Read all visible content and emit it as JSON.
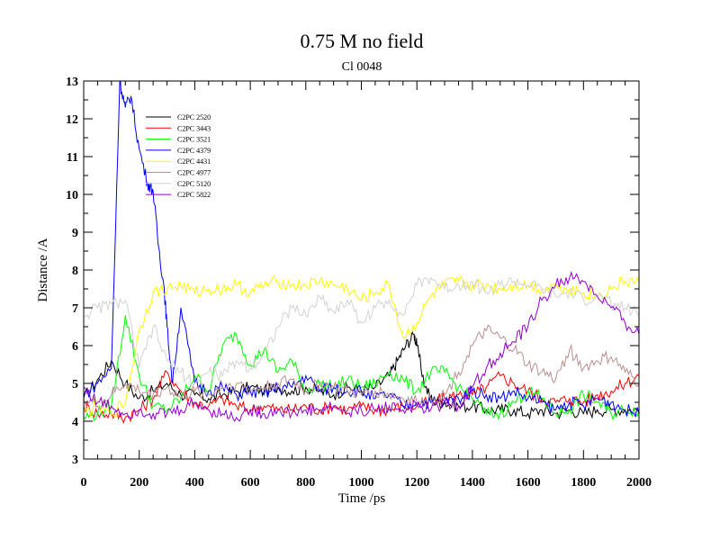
{
  "chart_data": {
    "type": "line",
    "title": "0.75 M no field",
    "subtitle": "Cl 0048",
    "xlabel": "Time /ps",
    "ylabel": "Distance /A",
    "xlim": [
      0,
      2000
    ],
    "ylim": [
      3,
      13
    ],
    "xticks": [
      "0",
      "200",
      "400",
      "600",
      "800",
      "1000",
      "1200",
      "1400",
      "1600",
      "1800",
      "2000"
    ],
    "yticks": [
      "3",
      "4",
      "5",
      "6",
      "7",
      "8",
      "9",
      "10",
      "11",
      "12",
      "13"
    ],
    "legend_position": "top-left",
    "series": [
      {
        "name": "C2PC 2520",
        "color": "#000000",
        "x": [
          0,
          50,
          100,
          150,
          200,
          250,
          300,
          350,
          400,
          450,
          500,
          550,
          600,
          650,
          700,
          750,
          800,
          850,
          900,
          950,
          1000,
          1050,
          1100,
          1130,
          1160,
          1190,
          1200,
          1230,
          1260,
          1300,
          1350,
          1400,
          1450,
          1500,
          1550,
          1600,
          1650,
          1700,
          1750,
          1800,
          1850,
          1900,
          1950,
          2000
        ],
        "y": [
          4.6,
          5.1,
          5.6,
          5.0,
          4.6,
          4.8,
          5.0,
          4.7,
          4.7,
          4.6,
          4.7,
          4.8,
          4.9,
          4.8,
          4.9,
          4.8,
          4.9,
          4.8,
          4.7,
          4.9,
          4.8,
          4.9,
          5.2,
          5.6,
          6.0,
          6.3,
          6.0,
          4.9,
          4.5,
          4.5,
          4.4,
          4.4,
          4.3,
          4.3,
          4.3,
          4.2,
          4.3,
          4.2,
          4.3,
          4.2,
          4.3,
          4.3,
          4.3,
          4.3
        ]
      },
      {
        "name": "C2PC 3443",
        "color": "#ff0000",
        "x": [
          0,
          50,
          100,
          150,
          200,
          250,
          300,
          350,
          400,
          450,
          500,
          550,
          600,
          650,
          700,
          750,
          800,
          850,
          900,
          950,
          1000,
          1050,
          1100,
          1150,
          1200,
          1250,
          1300,
          1350,
          1400,
          1450,
          1500,
          1550,
          1600,
          1650,
          1700,
          1750,
          1800,
          1850,
          1900,
          1950,
          2000
        ],
        "y": [
          4.4,
          4.2,
          4.2,
          4.1,
          4.3,
          4.6,
          5.3,
          4.8,
          4.5,
          4.4,
          4.6,
          4.4,
          4.3,
          4.4,
          4.3,
          4.3,
          4.4,
          4.3,
          4.4,
          4.3,
          4.4,
          4.3,
          4.3,
          4.4,
          4.4,
          4.5,
          4.6,
          4.7,
          4.7,
          4.9,
          5.2,
          5.0,
          4.8,
          4.6,
          4.5,
          4.6,
          4.5,
          4.7,
          4.8,
          5.0,
          5.2
        ]
      },
      {
        "name": "C2PC 3521",
        "color": "#00ff00",
        "x": [
          0,
          50,
          100,
          150,
          200,
          250,
          300,
          350,
          400,
          450,
          500,
          550,
          600,
          650,
          700,
          750,
          800,
          850,
          900,
          950,
          1000,
          1050,
          1100,
          1150,
          1200,
          1250,
          1300,
          1350,
          1400,
          1450,
          1500,
          1550,
          1600,
          1650,
          1700,
          1750,
          1800,
          1850,
          1900,
          1950,
          2000
        ],
        "y": [
          4.1,
          4.2,
          4.4,
          6.8,
          5.2,
          4.4,
          4.3,
          4.6,
          5.2,
          4.8,
          6.0,
          6.3,
          5.5,
          5.9,
          5.3,
          5.6,
          4.8,
          5.0,
          4.9,
          5.1,
          4.9,
          5.0,
          5.3,
          5.1,
          4.8,
          5.3,
          5.3,
          4.9,
          4.6,
          4.2,
          4.2,
          4.5,
          4.8,
          4.6,
          4.2,
          4.3,
          4.7,
          4.5,
          4.2,
          4.3,
          4.3
        ]
      },
      {
        "name": "C2PC 4379",
        "color": "#0000ff",
        "x": [
          0,
          50,
          100,
          130,
          150,
          170,
          200,
          230,
          250,
          270,
          290,
          300,
          320,
          350,
          400,
          450,
          500,
          550,
          600,
          650,
          700,
          750,
          800,
          850,
          900,
          950,
          1000,
          1050,
          1100,
          1150,
          1200,
          1250,
          1300,
          1350,
          1400,
          1450,
          1500,
          1550,
          1600,
          1650,
          1700,
          1750,
          1800,
          1850,
          1900,
          1950,
          2000
        ],
        "y": [
          4.7,
          5.0,
          5.4,
          13.0,
          12.3,
          12.6,
          11.2,
          10.3,
          10.1,
          8.6,
          7.5,
          6.5,
          5.0,
          7.0,
          5.0,
          4.8,
          4.9,
          4.7,
          4.8,
          4.7,
          4.9,
          4.9,
          5.2,
          4.8,
          4.9,
          4.8,
          4.8,
          4.6,
          4.7,
          4.4,
          4.5,
          4.5,
          4.5,
          4.6,
          4.8,
          4.7,
          4.6,
          4.8,
          4.6,
          4.5,
          4.3,
          4.5,
          4.4,
          4.6,
          4.5,
          4.3,
          4.2
        ]
      },
      {
        "name": "C2PC 4431",
        "color": "#ffff00",
        "x": [
          0,
          50,
          100,
          150,
          200,
          250,
          300,
          350,
          400,
          450,
          500,
          550,
          600,
          650,
          700,
          750,
          800,
          850,
          900,
          950,
          1000,
          1050,
          1100,
          1150,
          1200,
          1250,
          1300,
          1350,
          1400,
          1450,
          1500,
          1550,
          1600,
          1650,
          1700,
          1750,
          1800,
          1850,
          1900,
          1950,
          2000
        ],
        "y": [
          4.2,
          4.4,
          4.2,
          4.5,
          6.4,
          7.4,
          7.5,
          7.6,
          7.4,
          7.5,
          7.5,
          7.6,
          7.4,
          7.6,
          7.7,
          7.6,
          7.6,
          7.7,
          7.6,
          7.5,
          7.2,
          7.4,
          7.6,
          6.2,
          6.6,
          7.3,
          7.6,
          7.7,
          7.6,
          7.6,
          7.5,
          7.6,
          7.6,
          7.5,
          7.6,
          7.5,
          7.4,
          7.3,
          7.5,
          7.7,
          7.7
        ]
      },
      {
        "name": "C2PC 4977",
        "color": "#bc8f8f",
        "x": [
          0,
          50,
          100,
          150,
          200,
          250,
          300,
          350,
          400,
          450,
          500,
          550,
          600,
          650,
          700,
          750,
          800,
          850,
          900,
          950,
          1000,
          1050,
          1100,
          1150,
          1200,
          1250,
          1300,
          1350,
          1400,
          1450,
          1500,
          1550,
          1600,
          1650,
          1700,
          1750,
          1800,
          1850,
          1900,
          1950,
          2000
        ],
        "y": [
          4.6,
          4.4,
          4.7,
          5.0,
          4.8,
          4.7,
          4.9,
          4.6,
          4.8,
          4.7,
          4.9,
          5.0,
          4.8,
          4.9,
          5.0,
          5.1,
          4.8,
          5.0,
          4.9,
          4.8,
          4.7,
          4.8,
          4.7,
          4.6,
          4.5,
          4.6,
          4.7,
          5.3,
          6.0,
          6.4,
          6.2,
          5.9,
          5.5,
          5.3,
          5.1,
          5.9,
          5.4,
          5.6,
          5.7,
          5.3,
          5.0
        ]
      },
      {
        "name": "C2PC 5120",
        "color": "#d3d3d3",
        "x": [
          0,
          50,
          100,
          150,
          200,
          250,
          300,
          350,
          400,
          450,
          500,
          550,
          600,
          650,
          700,
          750,
          800,
          850,
          900,
          950,
          1000,
          1050,
          1100,
          1150,
          1200,
          1250,
          1300,
          1350,
          1400,
          1450,
          1500,
          1550,
          1600,
          1650,
          1700,
          1750,
          1800,
          1850,
          1900,
          1950,
          2000
        ],
        "y": [
          6.8,
          7.0,
          7.1,
          7.2,
          5.4,
          6.5,
          5.6,
          5.3,
          5.0,
          5.3,
          5.2,
          5.6,
          5.4,
          5.8,
          6.5,
          7.0,
          6.8,
          7.3,
          6.9,
          7.2,
          6.6,
          7.0,
          7.2,
          6.8,
          7.6,
          7.8,
          7.5,
          7.6,
          7.7,
          7.4,
          7.6,
          7.7,
          7.6,
          7.5,
          7.3,
          7.4,
          7.2,
          7.3,
          7.1,
          7.0,
          6.8
        ]
      },
      {
        "name": "C2PC 5822",
        "color": "#9400d3",
        "x": [
          0,
          50,
          100,
          150,
          200,
          250,
          300,
          350,
          400,
          450,
          500,
          550,
          600,
          650,
          700,
          750,
          800,
          850,
          900,
          950,
          1000,
          1050,
          1100,
          1150,
          1200,
          1250,
          1300,
          1350,
          1400,
          1450,
          1500,
          1550,
          1600,
          1650,
          1700,
          1750,
          1800,
          1850,
          1900,
          1950,
          2000
        ],
        "y": [
          4.9,
          4.5,
          4.4,
          4.2,
          4.3,
          4.2,
          4.2,
          4.3,
          4.5,
          4.3,
          4.2,
          4.1,
          4.3,
          4.2,
          4.3,
          4.2,
          4.3,
          4.3,
          4.4,
          4.2,
          4.3,
          4.3,
          4.4,
          4.3,
          4.4,
          4.3,
          4.5,
          4.4,
          4.9,
          5.4,
          5.8,
          6.1,
          6.5,
          7.2,
          7.6,
          7.8,
          7.7,
          7.3,
          7.0,
          6.6,
          6.3
        ]
      }
    ]
  }
}
